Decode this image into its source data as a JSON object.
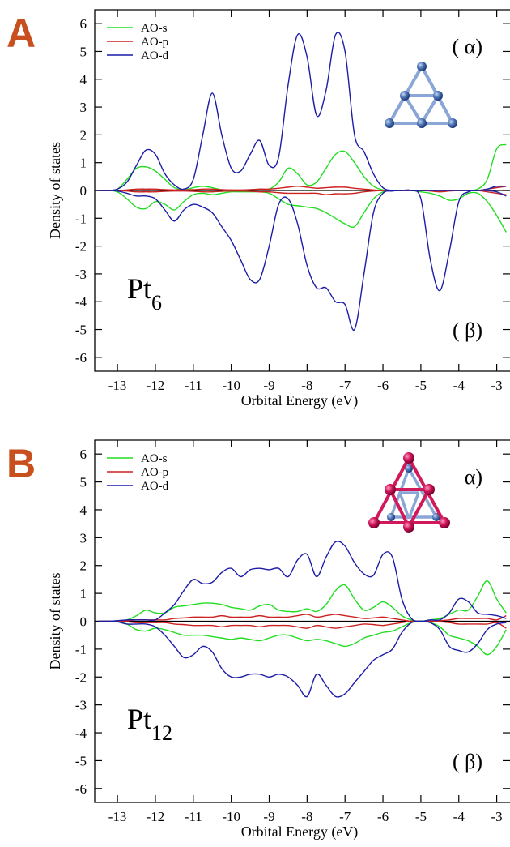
{
  "chart_data": [
    {
      "type": "line",
      "panel_label": "A",
      "xlabel": "Orbital Energy (eV)",
      "ylabel": "Density of states",
      "formula": "Pt",
      "formula_sub": "6",
      "alpha_label": "( α)",
      "beta_label": "( β)",
      "xlim": [
        -13.6,
        -2.65
      ],
      "ylim": [
        -6.5,
        6.5
      ],
      "xticks": [
        -13,
        -12,
        -11,
        -10,
        -9,
        -8,
        -7,
        -6,
        -5,
        -4,
        -3
      ],
      "yticks": [
        -6,
        -5,
        -4,
        -3,
        -2,
        -1,
        0,
        1,
        2,
        3,
        4,
        5,
        6
      ],
      "x": [
        -13.5,
        -13.25,
        -13,
        -12.75,
        -12.5,
        -12.25,
        -12,
        -11.75,
        -11.5,
        -11.25,
        -11,
        -10.75,
        -10.5,
        -10.25,
        -10,
        -9.75,
        -9.5,
        -9.25,
        -9,
        -8.75,
        -8.5,
        -8.25,
        -8,
        -7.75,
        -7.5,
        -7.25,
        -7,
        -6.75,
        -6.5,
        -6.25,
        -6,
        -5.75,
        -5.5,
        -5.25,
        -5,
        -4.75,
        -4.5,
        -4.25,
        -4,
        -3.75,
        -3.5,
        -3.25,
        -3,
        -2.75
      ],
      "series": [
        {
          "name": "AO-s",
          "color": "#22dd22",
          "values": [
            0,
            0,
            0.05,
            0.4,
            0.8,
            0.85,
            0.7,
            0.4,
            0.1,
            0.02,
            0.1,
            0.15,
            0.1,
            0.02,
            0,
            0,
            0.02,
            0.05,
            0.05,
            0.3,
            0.8,
            0.6,
            0.2,
            0.3,
            0.8,
            1.3,
            1.4,
            1.0,
            0.5,
            0.15,
            0.02,
            0,
            0,
            0,
            0,
            0,
            0,
            0,
            0,
            0,
            0.05,
            0.4,
            1.5,
            1.65
          ],
          "beta_values": [
            0,
            0,
            -0.05,
            -0.3,
            -0.6,
            -0.65,
            -0.4,
            -0.5,
            -0.7,
            -0.4,
            -0.15,
            -0.1,
            -0.15,
            -0.1,
            -0.05,
            -0.05,
            -0.05,
            -0.05,
            -0.1,
            -0.3,
            -0.5,
            -0.55,
            -0.6,
            -0.65,
            -0.8,
            -1.0,
            -1.2,
            -1.3,
            -0.8,
            -0.3,
            -0.05,
            0,
            0,
            0,
            -0.05,
            -0.1,
            -0.2,
            -0.35,
            -0.3,
            -0.1,
            -0.1,
            -0.4,
            -0.9,
            -1.5
          ]
        },
        {
          "name": "AO-p",
          "color": "#cc2222",
          "values": [
            0,
            0,
            0,
            0.02,
            0.05,
            0.05,
            0.05,
            0.03,
            0.02,
            0.02,
            0.03,
            0.05,
            0.05,
            0.03,
            0.02,
            0.02,
            0.03,
            0.05,
            0.05,
            0.08,
            0.12,
            0.15,
            0.12,
            0.08,
            0.1,
            0.12,
            0.12,
            0.08,
            0.05,
            0.02,
            0,
            0,
            0,
            0,
            0,
            0,
            0,
            0,
            0,
            0,
            0,
            0.05,
            0.1,
            0.15
          ],
          "beta_values": [
            0,
            0,
            0,
            -0.02,
            -0.05,
            -0.05,
            -0.05,
            -0.03,
            -0.02,
            -0.02,
            -0.03,
            -0.05,
            -0.05,
            -0.03,
            -0.02,
            -0.02,
            -0.03,
            -0.05,
            -0.05,
            -0.08,
            -0.1,
            -0.1,
            -0.1,
            -0.1,
            -0.15,
            -0.12,
            -0.12,
            -0.1,
            -0.05,
            -0.02,
            0,
            0,
            0,
            0,
            0,
            -0.02,
            -0.05,
            -0.02,
            0,
            0,
            0,
            -0.05,
            -0.1,
            -0.15
          ]
        },
        {
          "name": "AO-d",
          "color": "#1c1ca8",
          "values": [
            0,
            0,
            0.05,
            0.3,
            0.9,
            1.45,
            1.3,
            0.6,
            0.2,
            0.05,
            0.4,
            2.0,
            3.5,
            2.0,
            0.8,
            0.7,
            1.3,
            1.8,
            0.9,
            1.2,
            3.8,
            5.6,
            4.8,
            2.7,
            3.6,
            5.6,
            5.0,
            2.0,
            1.4,
            0.6,
            0.1,
            0,
            0,
            0,
            0,
            0,
            0,
            0,
            0,
            0,
            0,
            0.05,
            0.15,
            0.15
          ],
          "beta_values": [
            0,
            0,
            -0.02,
            -0.1,
            -0.2,
            -0.2,
            -0.3,
            -0.7,
            -1.1,
            -0.7,
            -0.5,
            -0.6,
            -0.8,
            -1.3,
            -1.8,
            -2.5,
            -3.2,
            -3.2,
            -2.0,
            -0.5,
            -0.3,
            -1.2,
            -2.7,
            -3.5,
            -3.5,
            -4.0,
            -4.1,
            -5.0,
            -3.0,
            -0.8,
            -0.1,
            -0.02,
            0,
            0,
            -0.3,
            -2.5,
            -3.6,
            -2.2,
            -0.4,
            -0.05,
            0,
            0,
            -0.05,
            -0.2
          ]
        }
      ]
    },
    {
      "type": "line",
      "panel_label": "B",
      "xlabel": "Orbital Energy (eV)",
      "ylabel": "Density of states",
      "formula": "Pt",
      "formula_sub": "12",
      "alpha_label": "α)",
      "beta_label": "( β)",
      "xlim": [
        -13.6,
        -2.65
      ],
      "ylim": [
        -6.5,
        6.5
      ],
      "xticks": [
        -13,
        -12,
        -11,
        -10,
        -9,
        -8,
        -7,
        -6,
        -5,
        -4,
        -3
      ],
      "yticks": [
        -6,
        -5,
        -4,
        -3,
        -2,
        -1,
        0,
        1,
        2,
        3,
        4,
        5,
        6
      ],
      "x": [
        -13.5,
        -13.25,
        -13,
        -12.75,
        -12.5,
        -12.25,
        -12,
        -11.75,
        -11.5,
        -11.25,
        -11,
        -10.75,
        -10.5,
        -10.25,
        -10,
        -9.75,
        -9.5,
        -9.25,
        -9,
        -8.75,
        -8.5,
        -8.25,
        -8,
        -7.75,
        -7.5,
        -7.25,
        -7,
        -6.75,
        -6.5,
        -6.25,
        -6,
        -5.75,
        -5.5,
        -5.25,
        -5,
        -4.75,
        -4.5,
        -4.25,
        -4,
        -3.75,
        -3.5,
        -3.25,
        -3,
        -2.75
      ],
      "series": [
        {
          "name": "AO-s",
          "color": "#22dd22",
          "values": [
            0,
            0,
            0.02,
            0.05,
            0.2,
            0.4,
            0.3,
            0.3,
            0.5,
            0.55,
            0.6,
            0.65,
            0.65,
            0.6,
            0.5,
            0.45,
            0.4,
            0.55,
            0.6,
            0.4,
            0.35,
            0.35,
            0.45,
            0.35,
            0.6,
            1.1,
            1.3,
            0.8,
            0.4,
            0.5,
            0.7,
            0.5,
            0.2,
            0.05,
            0,
            0.05,
            0.1,
            0.25,
            0.4,
            0.4,
            0.9,
            1.45,
            0.8,
            0.3
          ],
          "beta_values": [
            0,
            0,
            -0.02,
            -0.1,
            -0.3,
            -0.35,
            -0.25,
            -0.3,
            -0.4,
            -0.5,
            -0.5,
            -0.5,
            -0.55,
            -0.6,
            -0.65,
            -0.6,
            -0.65,
            -0.7,
            -0.6,
            -0.5,
            -0.5,
            -0.6,
            -0.7,
            -0.65,
            -0.7,
            -0.8,
            -0.9,
            -0.8,
            -0.6,
            -0.5,
            -0.4,
            -0.35,
            -0.2,
            -0.05,
            0,
            -0.05,
            -0.2,
            -0.5,
            -0.6,
            -0.7,
            -0.9,
            -1.2,
            -0.9,
            -0.3
          ]
        },
        {
          "name": "AO-p",
          "color": "#cc2222",
          "values": [
            0,
            0,
            0,
            0.02,
            0.05,
            0.05,
            0.05,
            0.05,
            0.1,
            0.12,
            0.15,
            0.15,
            0.15,
            0.2,
            0.15,
            0.15,
            0.15,
            0.2,
            0.15,
            0.15,
            0.15,
            0.2,
            0.25,
            0.15,
            0.2,
            0.25,
            0.2,
            0.15,
            0.1,
            0.12,
            0.15,
            0.1,
            0.05,
            0,
            0,
            0,
            0.02,
            0.05,
            0.1,
            0.1,
            0.1,
            0.1,
            0.05,
            0.2
          ],
          "beta_values": [
            0,
            0,
            0,
            -0.02,
            -0.05,
            -0.05,
            -0.05,
            -0.05,
            -0.1,
            -0.12,
            -0.15,
            -0.15,
            -0.15,
            -0.2,
            -0.15,
            -0.15,
            -0.15,
            -0.2,
            -0.15,
            -0.15,
            -0.15,
            -0.2,
            -0.25,
            -0.15,
            -0.2,
            -0.25,
            -0.2,
            -0.15,
            -0.1,
            -0.12,
            -0.15,
            -0.1,
            -0.05,
            0,
            0,
            0,
            -0.02,
            -0.05,
            -0.1,
            -0.1,
            -0.1,
            -0.1,
            -0.05,
            -0.25
          ]
        },
        {
          "name": "AO-d",
          "color": "#1c1ca8",
          "values": [
            0,
            0,
            0.02,
            0.05,
            0.05,
            0.05,
            0.05,
            0.3,
            0.6,
            1.1,
            1.5,
            1.35,
            1.4,
            1.75,
            1.9,
            1.6,
            1.85,
            1.9,
            1.85,
            1.9,
            1.6,
            2.2,
            2.4,
            1.6,
            2.3,
            2.85,
            2.7,
            2.1,
            1.7,
            1.65,
            2.4,
            2.3,
            0.8,
            0.1,
            0,
            0.05,
            0.05,
            0.3,
            0.8,
            0.7,
            0.3,
            0.25,
            0.2,
            0.1
          ],
          "beta_values": [
            0,
            0,
            -0.02,
            -0.1,
            -0.1,
            -0.1,
            -0.2,
            -0.5,
            -0.9,
            -1.3,
            -1.2,
            -0.9,
            -1.1,
            -1.7,
            -2.0,
            -2.0,
            -1.9,
            -1.9,
            -2.0,
            -1.9,
            -2.0,
            -2.3,
            -2.7,
            -1.9,
            -2.3,
            -2.7,
            -2.6,
            -2.2,
            -1.8,
            -1.4,
            -1.2,
            -1.0,
            -0.4,
            -0.05,
            0,
            -0.05,
            -0.3,
            -0.9,
            -1.05,
            -1.1,
            -0.8,
            -0.3,
            -0.1,
            -0.05
          ]
        }
      ]
    }
  ]
}
